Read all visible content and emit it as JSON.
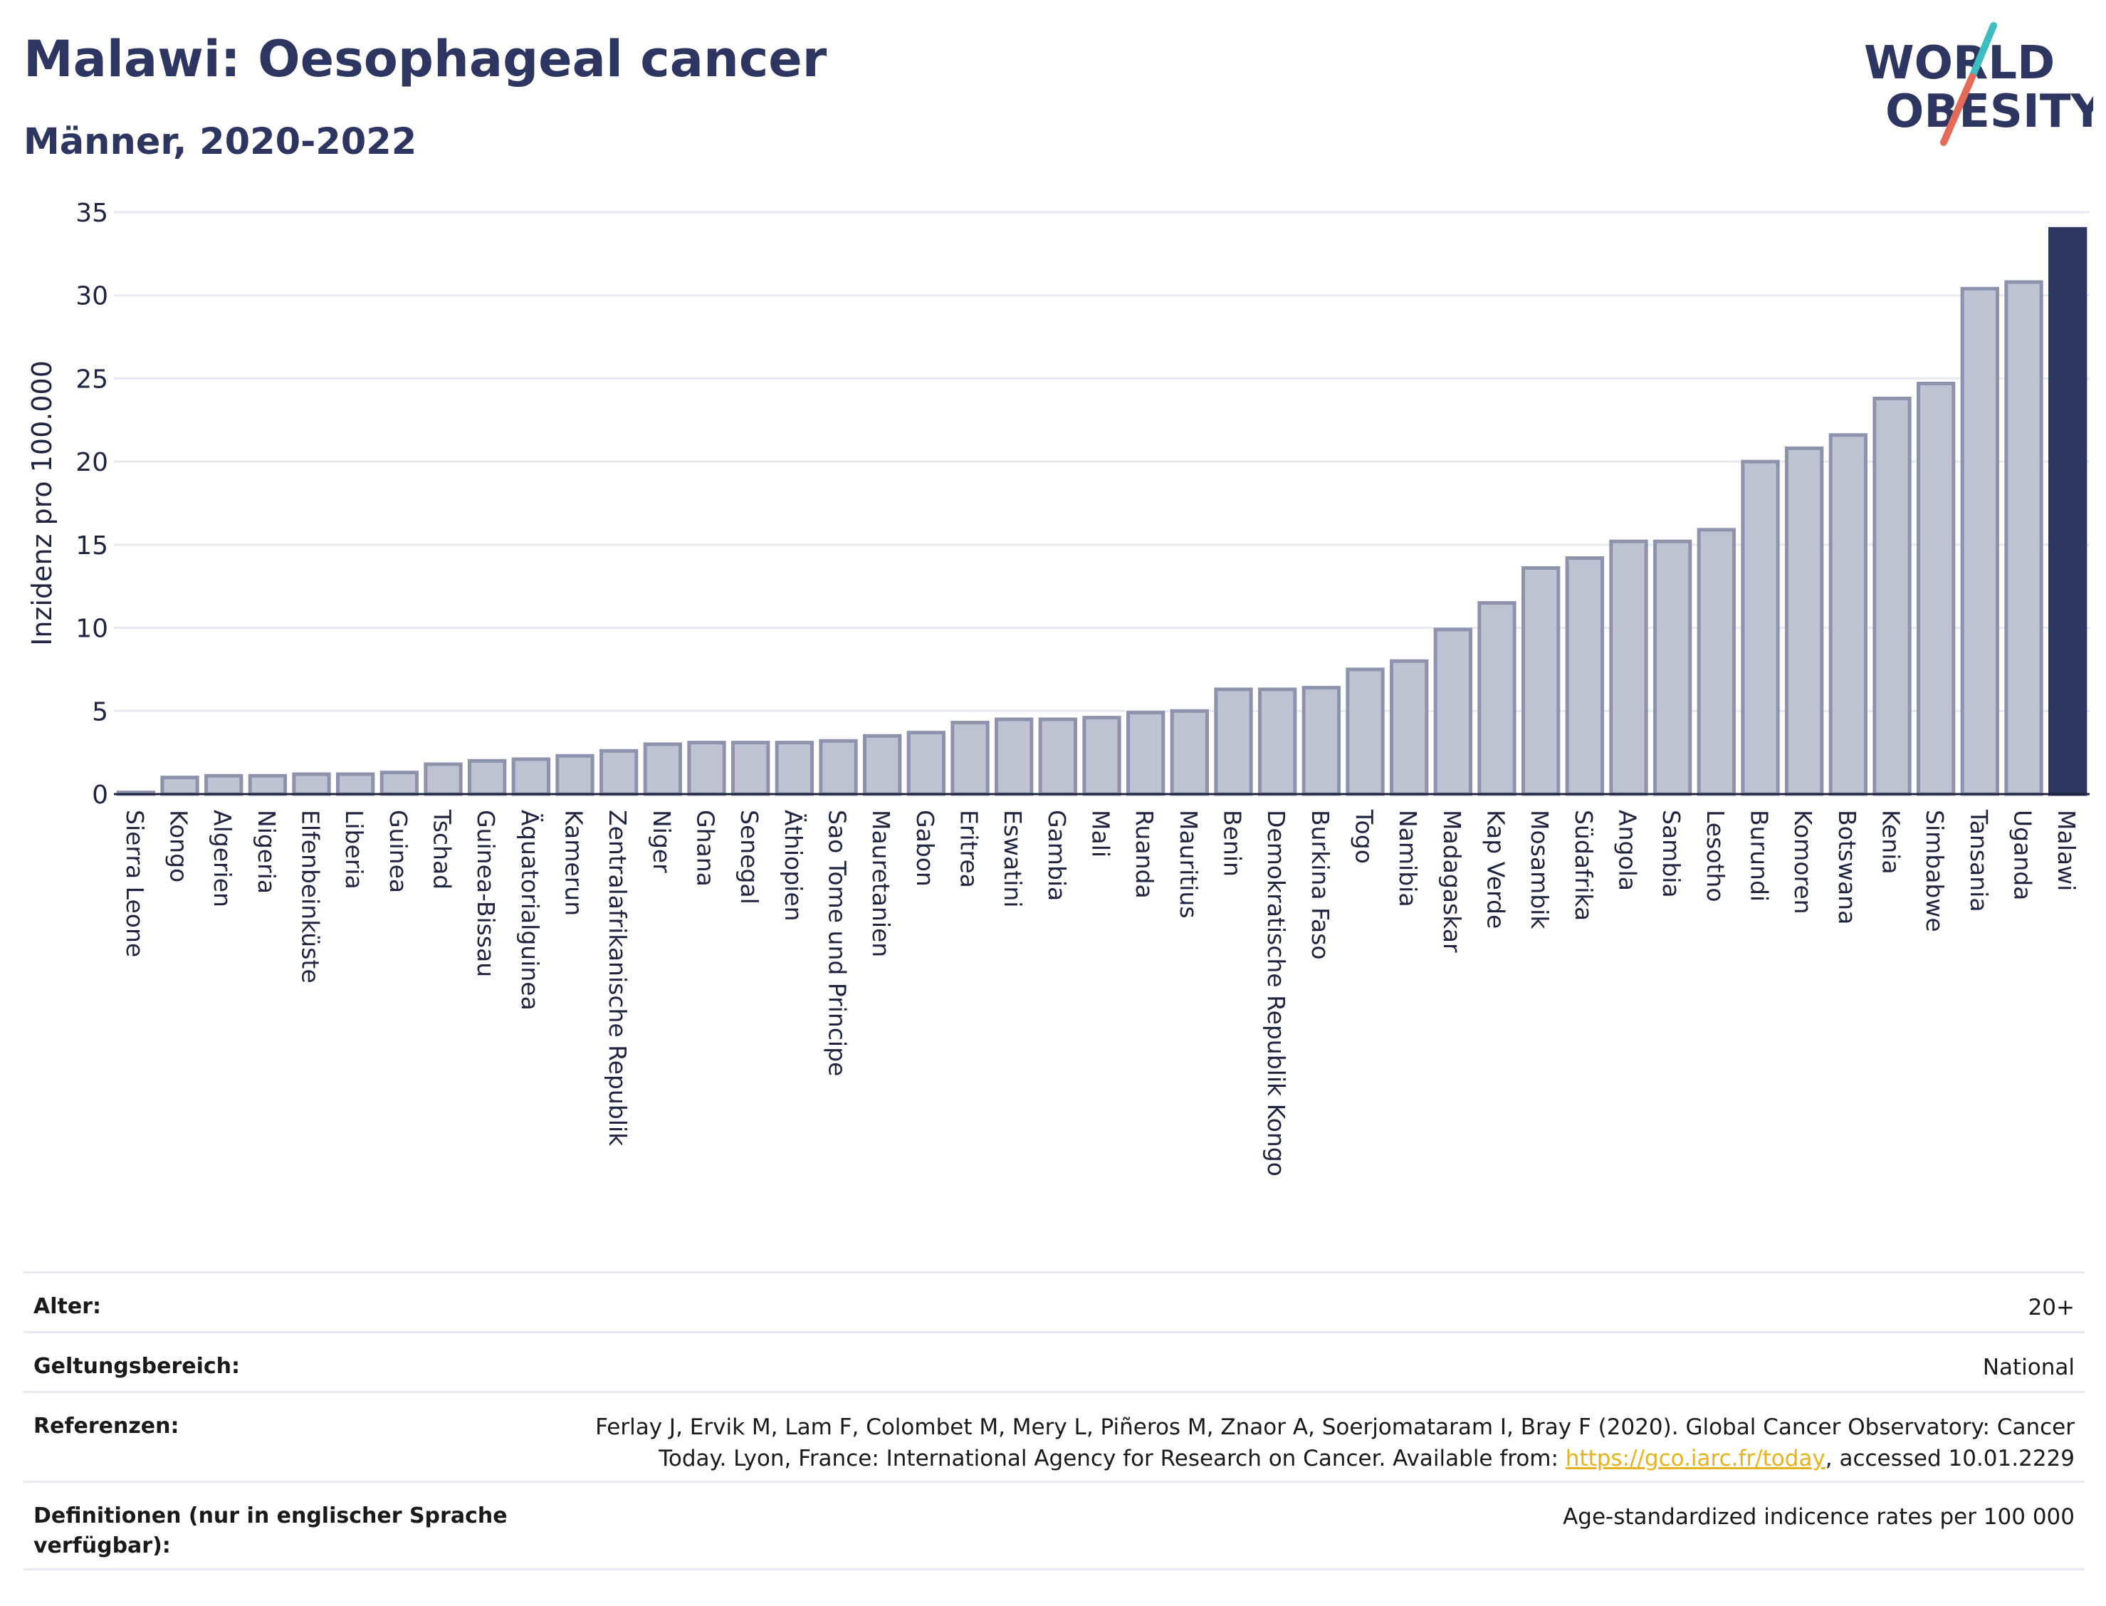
{
  "header": {
    "title": "Malawi: Oesophageal cancer",
    "subtitle": "Männer, 2020-2022"
  },
  "logo": {
    "line1": "WORLD",
    "line2": "OBESITY",
    "accent_teal": "#3dbdbd",
    "accent_coral": "#e46a5a"
  },
  "colors": {
    "bar": "#bfc3d1",
    "bar_stroke": "#8e93ad",
    "highlight": "#2c3660",
    "grid": "#e6eaf0"
  },
  "chart_data": {
    "type": "bar",
    "ylabel": "Inzidenz pro 100.000",
    "ylim": [
      0,
      35
    ],
    "yticks": [
      0,
      5,
      10,
      15,
      20,
      25,
      30,
      35
    ],
    "grid": true,
    "highlight": "Malawi",
    "categories": [
      "Sierra Leone",
      "Kongo",
      "Algerien",
      "Nigeria",
      "Elfenbeinküste",
      "Liberia",
      "Guinea",
      "Tschad",
      "Guinea-Bissau",
      "Äquatorialguinea",
      "Kamerun",
      "Zentralafrikanische Republik",
      "Niger",
      "Ghana",
      "Senegal",
      "Äthiopien",
      "Sao Tome und Principe",
      "Mauretanien",
      "Gabon",
      "Eritrea",
      "Eswatini",
      "Gambia",
      "Mali",
      "Ruanda",
      "Mauritius",
      "Benin",
      "Demokratische Republik Kongo",
      "Burkina Faso",
      "Togo",
      "Namibia",
      "Madagaskar",
      "Kap Verde",
      "Mosambik",
      "Südafrika",
      "Angola",
      "Sambia",
      "Lesotho",
      "Burundi",
      "Komoren",
      "Botswana",
      "Kenia",
      "Simbabwe",
      "Tansania",
      "Uganda",
      "Malawi"
    ],
    "values": [
      0.1,
      1.0,
      1.1,
      1.1,
      1.2,
      1.2,
      1.3,
      1.8,
      2.0,
      2.1,
      2.3,
      2.6,
      3.0,
      3.1,
      3.1,
      3.1,
      3.2,
      3.5,
      3.7,
      4.3,
      4.5,
      4.5,
      4.6,
      4.9,
      5.0,
      6.3,
      6.3,
      6.4,
      7.5,
      8.0,
      9.9,
      11.5,
      13.6,
      14.2,
      15.2,
      15.2,
      15.9,
      20.0,
      20.8,
      21.6,
      23.8,
      24.7,
      30.4,
      30.8,
      34.0
    ]
  },
  "meta": {
    "age_label": "Alter:",
    "age_value": "20+",
    "scope_label": "Geltungsbereich:",
    "scope_value": "National",
    "ref_label": "Referenzen:",
    "ref_text_1": "Ferlay J, Ervik M, Lam F, Colombet M, Mery L, Piñeros M, Znaor A, Soerjomataram I, Bray F (2020). Global Cancer Observatory: Cancer Today. Lyon, France: International Agency for Research on Cancer. Available from: ",
    "ref_link": "https://gco.iarc.fr/today",
    "ref_text_2": ", accessed 10.01.2229",
    "def_label": "Definitionen (nur in englischer Sprache verfügbar):",
    "def_value": "Age-standardized indicence rates per 100 000"
  }
}
